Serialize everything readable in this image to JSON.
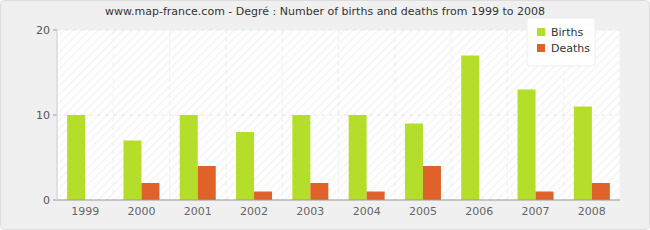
{
  "chart_data": {
    "type": "bar",
    "title": "www.map-france.com - Degré : Number of births and deaths from 1999 to 2008",
    "categories": [
      "1999",
      "2000",
      "2001",
      "2002",
      "2003",
      "2004",
      "2005",
      "2006",
      "2007",
      "2008"
    ],
    "series": [
      {
        "name": "Births",
        "color": "#b5de2b",
        "values": [
          10,
          7,
          10,
          8,
          10,
          10,
          9,
          17,
          13,
          11
        ]
      },
      {
        "name": "Deaths",
        "color": "#e0622b",
        "values": [
          0,
          2,
          4,
          1,
          2,
          1,
          4,
          0,
          1,
          2
        ]
      }
    ],
    "ylim": [
      0,
      20
    ],
    "yticks": [
      0,
      10,
      20
    ],
    "grid": true,
    "legend": "top-right"
  }
}
